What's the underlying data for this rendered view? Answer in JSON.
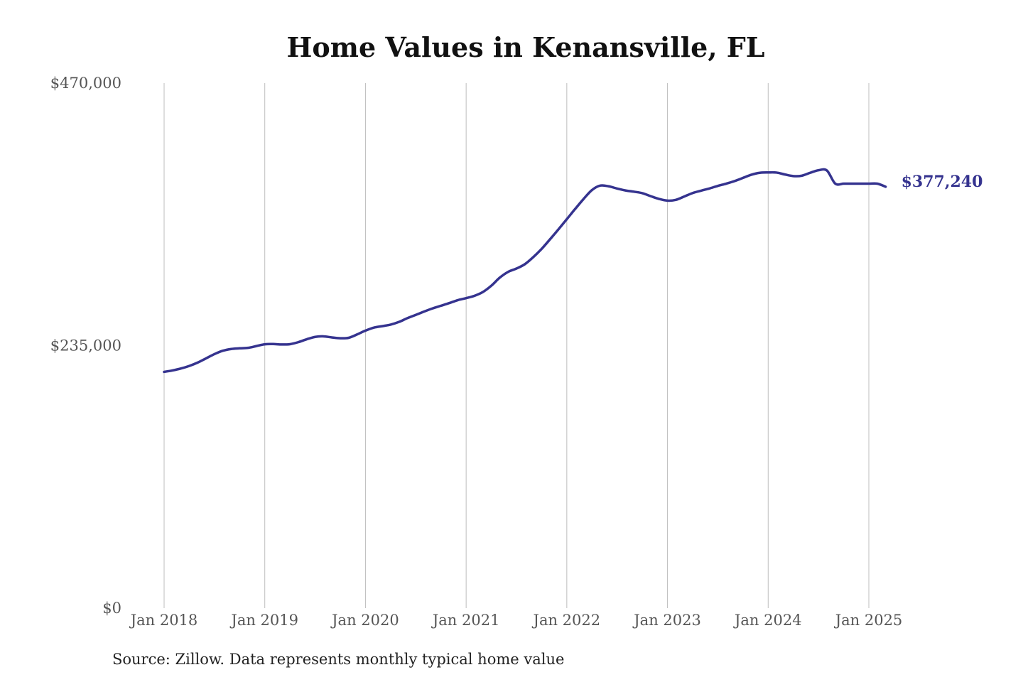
{
  "chart_data": {
    "type": "line",
    "title": "Home Values in Kenansville, FL",
    "source": "Source: Zillow. Data represents monthly typical home value",
    "ylim": [
      0,
      470000
    ],
    "y_ticks": [
      {
        "value": 0,
        "label": "$0"
      },
      {
        "value": 235000,
        "label": "$235,000"
      },
      {
        "value": 470000,
        "label": "$470,000"
      }
    ],
    "x_ticks": [
      {
        "date": "2018-01",
        "label": "Jan 2018"
      },
      {
        "date": "2019-01",
        "label": "Jan 2019"
      },
      {
        "date": "2020-01",
        "label": "Jan 2020"
      },
      {
        "date": "2021-01",
        "label": "Jan 2021"
      },
      {
        "date": "2022-01",
        "label": "Jan 2022"
      },
      {
        "date": "2023-01",
        "label": "Jan 2023"
      },
      {
        "date": "2024-01",
        "label": "Jan 2024"
      },
      {
        "date": "2025-01",
        "label": "Jan 2025"
      }
    ],
    "grid": "vertical",
    "line_color": "#35338f",
    "end_label": "$377,240",
    "series": [
      {
        "x": [
          "2018-01",
          "2018-02",
          "2018-03",
          "2018-04",
          "2018-05",
          "2018-06",
          "2018-07",
          "2018-08",
          "2018-09",
          "2018-10",
          "2018-11",
          "2018-12",
          "2019-01",
          "2019-02",
          "2019-03",
          "2019-04",
          "2019-05",
          "2019-06",
          "2019-07",
          "2019-08",
          "2019-09",
          "2019-10",
          "2019-11",
          "2019-12",
          "2020-01",
          "2020-02",
          "2020-03",
          "2020-04",
          "2020-05",
          "2020-06",
          "2020-07",
          "2020-08",
          "2020-09",
          "2020-10",
          "2020-11",
          "2020-12",
          "2021-01",
          "2021-02",
          "2021-03",
          "2021-04",
          "2021-05",
          "2021-06",
          "2021-07",
          "2021-08",
          "2021-09",
          "2021-10",
          "2021-11",
          "2021-12",
          "2022-01",
          "2022-02",
          "2022-03",
          "2022-04",
          "2022-05",
          "2022-06",
          "2022-07",
          "2022-08",
          "2022-09",
          "2022-10",
          "2022-11",
          "2022-12",
          "2023-01",
          "2023-02",
          "2023-03",
          "2023-04",
          "2023-05",
          "2023-06",
          "2023-07",
          "2023-08",
          "2023-09",
          "2023-10",
          "2023-11",
          "2023-12",
          "2024-01",
          "2024-02",
          "2024-03",
          "2024-04",
          "2024-05",
          "2024-06",
          "2024-07",
          "2024-08",
          "2024-09",
          "2024-10",
          "2024-11",
          "2024-12",
          "2025-01",
          "2025-02",
          "2025-03"
        ],
        "values": [
          211500,
          212800,
          214500,
          216800,
          219800,
          223600,
          227400,
          230400,
          232000,
          232600,
          233000,
          234600,
          236200,
          236400,
          236000,
          236300,
          238100,
          240700,
          242800,
          243300,
          242300,
          241600,
          242000,
          245000,
          248400,
          251100,
          252400,
          253800,
          256200,
          259600,
          262500,
          265500,
          268300,
          270700,
          273100,
          275700,
          277500,
          279600,
          283000,
          288600,
          295800,
          301000,
          304000,
          307900,
          314200,
          321600,
          330200,
          339100,
          348200,
          357400,
          366300,
          374300,
          378300,
          377600,
          375600,
          373900,
          372800,
          371500,
          368800,
          366300,
          364800,
          365500,
          368500,
          371600,
          373700,
          375700,
          378000,
          380000,
          382300,
          385200,
          388000,
          389700,
          390000,
          389900,
          388200,
          386800,
          387100,
          389700,
          392000,
          391800,
          380000,
          380000,
          380000,
          380000,
          380000,
          380000,
          377240
        ]
      }
    ]
  }
}
